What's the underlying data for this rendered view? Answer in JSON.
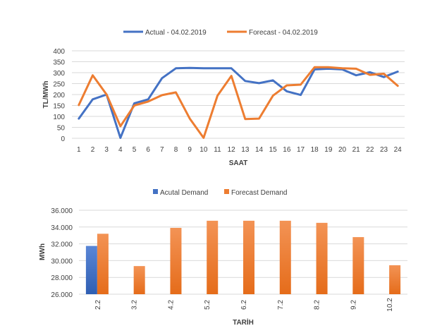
{
  "chart_data": [
    {
      "type": "line",
      "title": "",
      "xlabel": "SAAT",
      "ylabel": "TL/MWh",
      "ylim": [
        0,
        400
      ],
      "yticks": [
        "0",
        "50",
        "100",
        "150",
        "200",
        "250",
        "300",
        "350",
        "400"
      ],
      "categories": [
        "1",
        "2",
        "3",
        "4",
        "5",
        "6",
        "7",
        "8",
        "9",
        "10",
        "11",
        "12",
        "13",
        "14",
        "15",
        "16",
        "17",
        "18",
        "19",
        "20",
        "21",
        "22",
        "23",
        "24"
      ],
      "legend_position": "top",
      "grid": true,
      "series": [
        {
          "name": "Actual - 04.02.2019",
          "color": "#4472C4",
          "values": [
            90,
            178,
            200,
            2,
            160,
            178,
            275,
            320,
            322,
            320,
            320,
            320,
            262,
            252,
            265,
            215,
            198,
            315,
            318,
            315,
            288,
            302,
            280,
            305
          ]
        },
        {
          "name": "Forecast - 04.02.2019",
          "color": "#ED7D31",
          "values": [
            152,
            288,
            200,
            55,
            150,
            168,
            197,
            210,
            90,
            2,
            195,
            285,
            88,
            90,
            195,
            242,
            245,
            325,
            325,
            320,
            318,
            290,
            295,
            240
          ]
        }
      ]
    },
    {
      "type": "bar",
      "title": "",
      "xlabel": "TARİH",
      "ylabel": "MWh",
      "ylim": [
        26000,
        36000
      ],
      "yticks": [
        "26.000",
        "28.000",
        "30.000",
        "32.000",
        "34.000",
        "36.000"
      ],
      "categories": [
        "2.2",
        "3.2",
        "4.2",
        "5.2",
        "6.2",
        "7.2",
        "8.2",
        "9.2",
        "10.2"
      ],
      "legend_position": "top",
      "grid": true,
      "series": [
        {
          "name": "Acutal Demand",
          "color": "#4472C4",
          "values": [
            31750,
            null,
            null,
            null,
            null,
            null,
            null,
            null,
            null
          ]
        },
        {
          "name": "Forecast Demand",
          "color": "#ED7D31",
          "values": [
            33200,
            29350,
            33900,
            34750,
            34750,
            34750,
            34500,
            32800,
            29450
          ]
        }
      ]
    }
  ]
}
